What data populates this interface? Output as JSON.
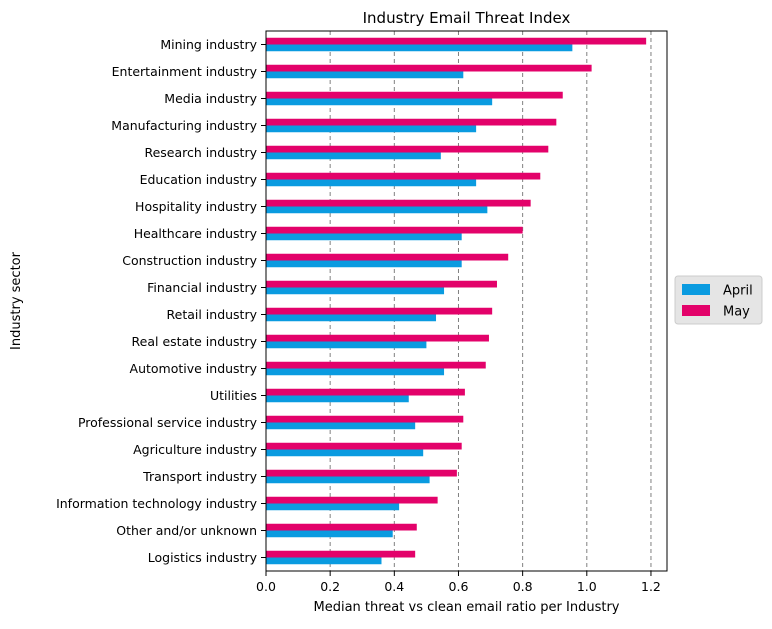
{
  "chart_data": {
    "type": "bar",
    "orientation": "horizontal",
    "title": "Industry Email Threat Index",
    "xlabel": "Median threat vs clean email ratio per Industry",
    "ylabel": "Industry sector",
    "xlim": [
      0,
      1.25
    ],
    "xticks": [
      0.0,
      0.2,
      0.4,
      0.6,
      0.8,
      1.0,
      1.2
    ],
    "xtick_labels": [
      "0.0",
      "0.2",
      "0.4",
      "0.6",
      "0.8",
      "1.0",
      "1.2"
    ],
    "grid": "vertical dashed",
    "legend_position": "right",
    "categories": [
      "Mining industry",
      "Entertainment industry",
      "Media industry",
      "Manufacturing industry",
      "Research industry",
      "Education industry",
      "Hospitality industry",
      "Healthcare industry",
      "Construction industry",
      "Financial industry",
      "Retail industry",
      "Real estate industry",
      "Automotive industry",
      "Utilities",
      "Professional service industry",
      "Agriculture industry",
      "Transport industry",
      "Information technology industry",
      "Other and/or unknown",
      "Logistics industry"
    ],
    "series": [
      {
        "name": "April",
        "color": "#0a9be0",
        "values": [
          0.955,
          0.615,
          0.705,
          0.655,
          0.545,
          0.655,
          0.69,
          0.61,
          0.61,
          0.555,
          0.53,
          0.5,
          0.555,
          0.445,
          0.465,
          0.49,
          0.51,
          0.415,
          0.395,
          0.36
        ]
      },
      {
        "name": "May",
        "color": "#e3026a",
        "values": [
          1.185,
          1.015,
          0.925,
          0.905,
          0.88,
          0.855,
          0.825,
          0.8,
          0.755,
          0.72,
          0.705,
          0.695,
          0.685,
          0.62,
          0.615,
          0.61,
          0.595,
          0.535,
          0.47,
          0.465
        ]
      }
    ]
  }
}
